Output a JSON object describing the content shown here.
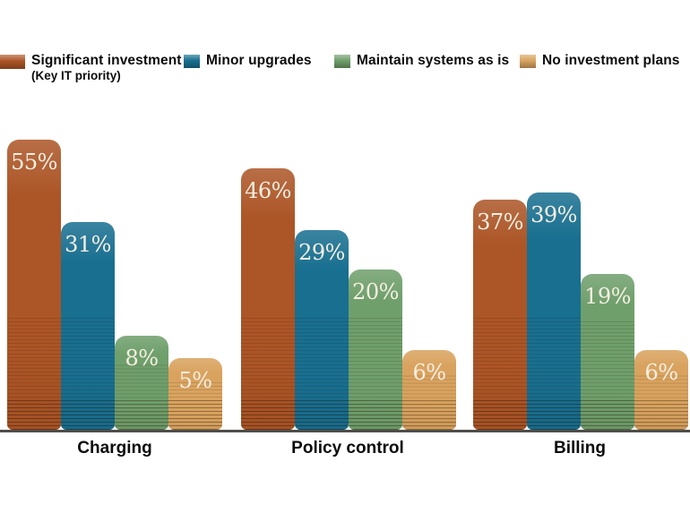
{
  "chart_data": {
    "type": "bar",
    "title": "",
    "categories": [
      "Charging",
      "Policy control",
      "Billing"
    ],
    "series": [
      {
        "name": "Significant investment (Key IT priority)",
        "color": "#AC5526",
        "values": [
          55,
          46,
          37
        ]
      },
      {
        "name": "Minor upgrades",
        "color": "#186F90",
        "values": [
          31,
          29,
          39
        ]
      },
      {
        "name": "Maintain systems as is",
        "color": "#6F9F6B",
        "values": [
          8,
          20,
          19
        ]
      },
      {
        "name": "No investment plans",
        "color": "#D9A35F",
        "values": [
          5,
          6,
          6
        ]
      }
    ],
    "value_suffix": "%",
    "value_label_color": "#F5EEE2",
    "xlabel": "",
    "ylabel": "",
    "grid": false,
    "legend_position": "top",
    "axis_line_color": "#4F4E4A"
  },
  "legend": {
    "items": [
      {
        "label": "Significant investment",
        "sublabel": "(Key IT priority)",
        "color": "#AC5526"
      },
      {
        "label": "Minor upgrades",
        "color": "#186F90"
      },
      {
        "label": "Maintain systems as is",
        "color": "#6F9F6B"
      },
      {
        "label": "No investment plans",
        "color": "#D9A35F"
      }
    ]
  }
}
